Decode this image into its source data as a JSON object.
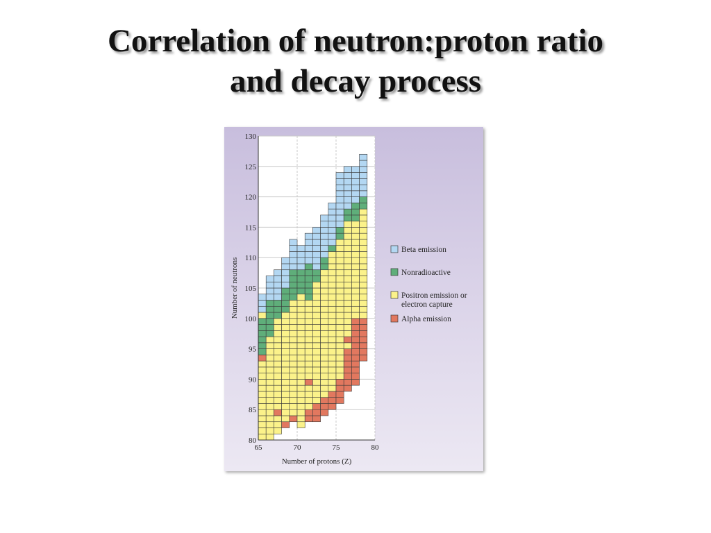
{
  "slide": {
    "title_line1": "Correlation of neutron:proton ratio",
    "title_line2": "and decay process"
  },
  "chart_data": {
    "type": "heatmap",
    "title": "",
    "xlabel": "Number of protons (Z)",
    "ylabel": "Number of neutrons",
    "xlim": [
      65,
      80
    ],
    "ylim": [
      80,
      130
    ],
    "xticks": [
      65,
      70,
      75,
      80
    ],
    "yticks": [
      80,
      85,
      90,
      95,
      100,
      105,
      110,
      115,
      120,
      125,
      130
    ],
    "grid": true,
    "legend_position": "right",
    "categories": [
      {
        "key": "B",
        "label": "Beta emission",
        "color": "#b3d7f2"
      },
      {
        "key": "N",
        "label": "Nonradioactive",
        "color": "#5fae7a"
      },
      {
        "key": "P",
        "label": "Positron emission or electron capture",
        "label_lines": [
          "Positron emission or",
          "electron capture"
        ],
        "color": "#fbf28a"
      },
      {
        "key": "A",
        "label": "Alpha emission",
        "color": "#e2785f"
      }
    ],
    "series": [
      {
        "z": 66,
        "n_start": 81,
        "cells": "PPPPPPPPPPPPPANNNNNNPBBB"
      },
      {
        "z": 67,
        "n_start": 81,
        "cells": "PPPPPPPPPPPPPPPPPNNNNNNBBBB"
      },
      {
        "z": 68,
        "n_start": 82,
        "cells": "PPPAPPPPPPPPPPPPPPPNNNBBBBB"
      },
      {
        "z": 69,
        "n_start": 83,
        "cells": "APPPPPPPPPPPPPPPPPPNNNNBBBBB"
      },
      {
        "z": 70,
        "n_start": 84,
        "cells": "APPPPPPPPPPPPPPPPPPPNNNNNBBBBB"
      },
      {
        "z": 71,
        "n_start": 83,
        "cells": "PPPPPPPPPPPPPPPPPPPPPPNNNNBBBB"
      },
      {
        "z": 72,
        "n_start": 84,
        "cells": "AAPPPPAPPPPPPPPPPPPPNNNNNNBBBBB"
      },
      {
        "z": 73,
        "n_start": 84,
        "cells": "AAAPPPPPPPPPPPPPPPPPPPPNNBBBBBBB"
      },
      {
        "z": 74,
        "n_start": 85,
        "cells": "AAAPPPPPPPPPPPPPPPPPPPPPNNBBBBBBB"
      },
      {
        "z": 75,
        "n_start": 86,
        "cells": "AAAPPPPPPPPPPPPPPPPPPPPPPPNBBBBBBB"
      },
      {
        "z": 76,
        "n_start": 87,
        "cells": "AAAAPPPPPPPPPPPPPPPPPPPPPPPNNBBBBBBBBB"
      },
      {
        "z": 77,
        "n_start": 89,
        "cells": "AAAAAAAPAPPPPPPPPPPPPPPPPPPPNNBBBBBBB"
      },
      {
        "z": 78,
        "n_start": 90,
        "cells": "AAAAAAAAAAAPPPPPPPPPPPPPPPPNNNBBBBBB"
      },
      {
        "z": 79,
        "n_start": 94,
        "cells": "AAAAAAAPPPPPPPPPPPPPPPPPPNNBBBBBBB"
      }
    ]
  }
}
